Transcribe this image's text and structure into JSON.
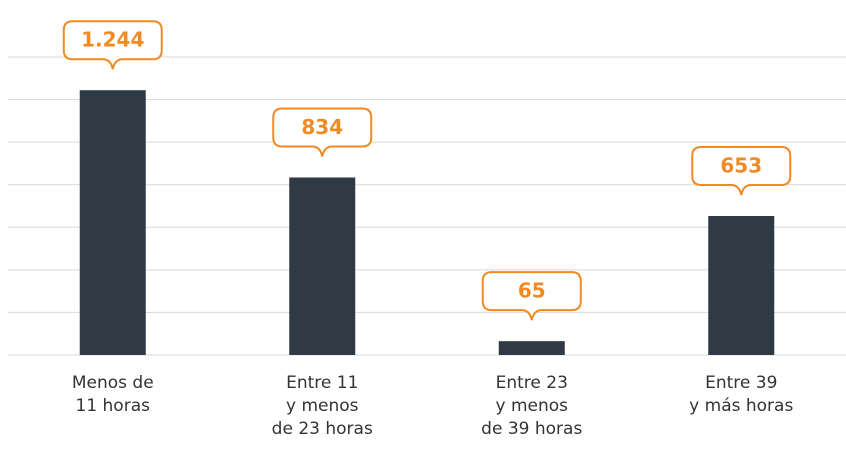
{
  "chart_data": {
    "type": "bar",
    "categories": [
      "Menos de\n11 horas",
      "Entre 11\ny menos\nde 23 horas",
      "Entre 23\ny menos\nde 39 horas",
      "Entre 39\ny más horas"
    ],
    "values": [
      1244,
      834,
      65,
      653
    ],
    "value_labels": [
      "1.244",
      "834",
      "65",
      "653"
    ],
    "color": "#2f3a44",
    "label_color": "#f08a24",
    "ylim": [
      0,
      1400
    ],
    "yticks": [
      0,
      200,
      400,
      600,
      800,
      1000,
      1200,
      1400
    ],
    "grid": true
  }
}
